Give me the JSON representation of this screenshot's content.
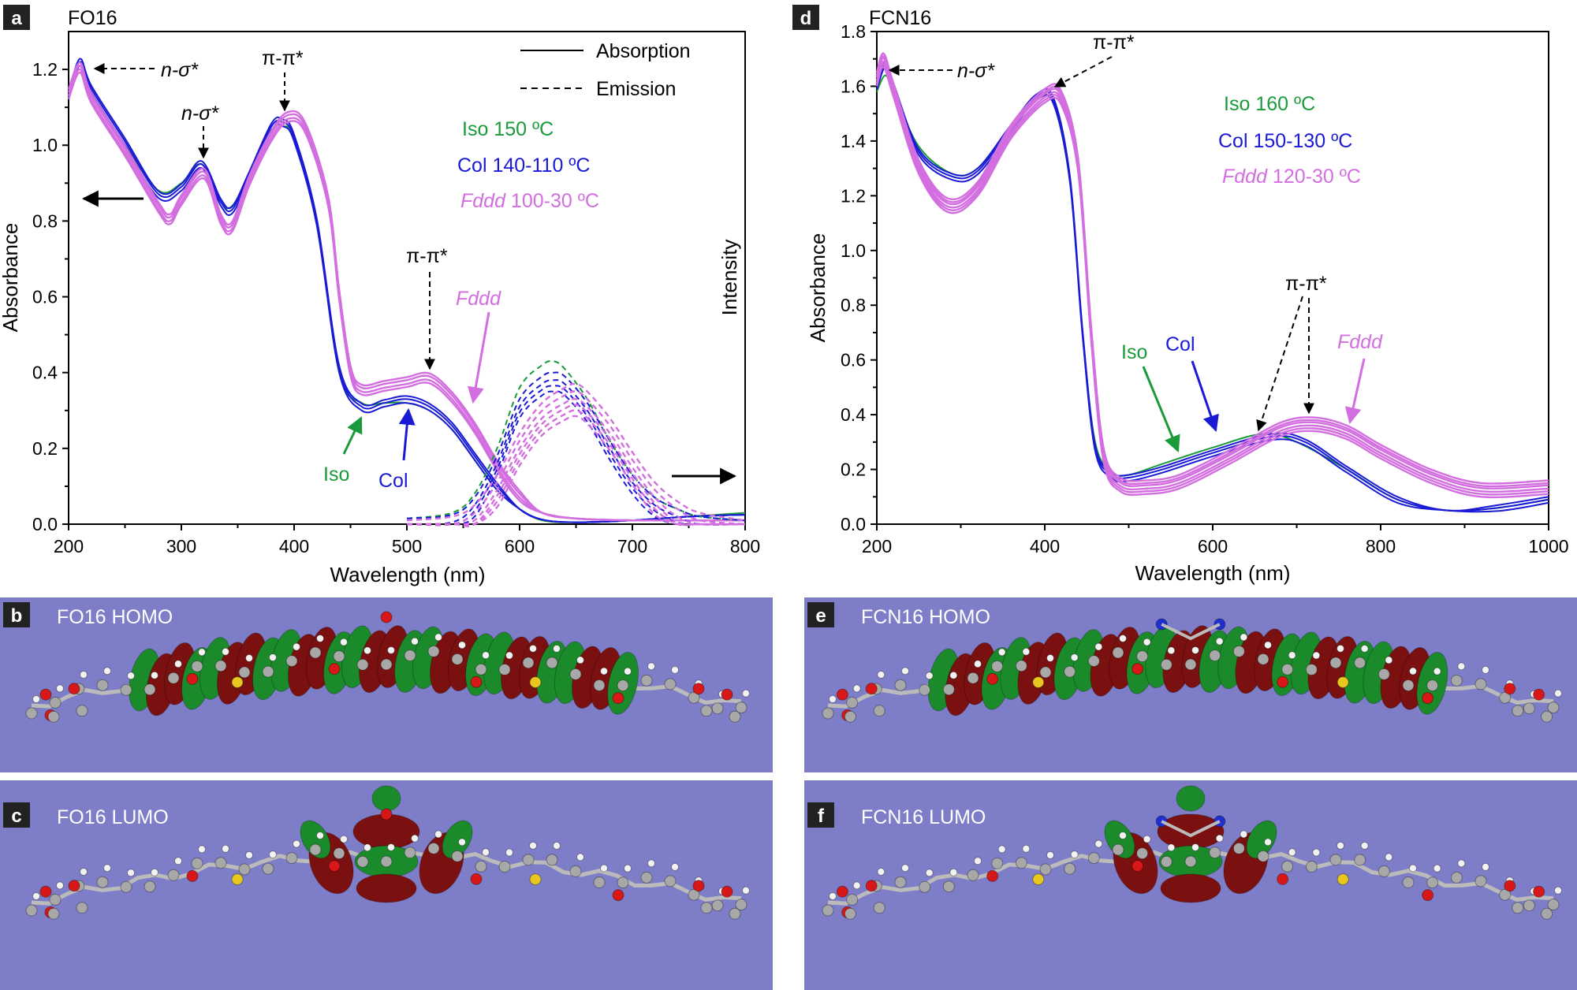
{
  "colors": {
    "iso": "#1a9a3a",
    "col": "#1a1ad6",
    "fddd": "#d36ee0",
    "panel_bg": "#7e7ec8",
    "lobe_green": "#1a8a2a",
    "lobe_red": "#7a1010",
    "atom_c": "#a8a8a8",
    "atom_h": "#f2f2f2",
    "atom_o": "#d81818",
    "atom_s": "#e8c820",
    "atom_n": "#2030d0"
  },
  "panels": {
    "a": {
      "letter": "a",
      "title": "FO16"
    },
    "d": {
      "letter": "d",
      "title": "FCN16"
    },
    "b": {
      "letter": "b",
      "title": "FO16 HOMO"
    },
    "c": {
      "letter": "c",
      "title": "FO16 LUMO"
    },
    "e": {
      "letter": "e",
      "title": "FCN16 HOMO"
    },
    "f": {
      "letter": "f",
      "title": "FCN16 LUMO"
    }
  },
  "annotations_a": {
    "n_sigma_1": "n-σ*",
    "n_sigma_2": "n-σ*",
    "pi_pi_1": "π-π*",
    "pi_pi_2": "π-π*",
    "fddd_label": "Fddd",
    "iso_label": "Iso",
    "col_label": "Col",
    "legend_abs": "Absorption",
    "legend_em": "Emission",
    "iso_temp": "Iso 150 ºC",
    "col_temp": "Col 140-110 ºC",
    "fddd_temp_italic": "Fddd",
    "fddd_temp_rest": " 100-30 ºC"
  },
  "annotations_d": {
    "n_sigma": "n-σ*",
    "pi_pi_1": "π-π*",
    "pi_pi_2": "π-π*",
    "iso_label": "Iso",
    "col_label": "Col",
    "fddd_label": "Fddd",
    "iso_temp": "Iso 160 ºC",
    "col_temp": "Col 150-130 ºC",
    "fddd_temp_italic": "Fddd",
    "fddd_temp_rest": " 120-30 ºC"
  },
  "chart_data": [
    {
      "type": "line",
      "title": "FO16",
      "xlabel": "Wavelength (nm)",
      "ylabel": "Absorbance",
      "y2label": "Intensity",
      "xlim": [
        200,
        800
      ],
      "ylim": [
        0,
        1.3
      ],
      "xticks": [
        200,
        300,
        400,
        500,
        600,
        700,
        800
      ],
      "xtick_labels": [
        "200",
        "300",
        "400",
        "500",
        "600",
        "700",
        "800"
      ],
      "yticks": [
        0,
        0.2,
        0.4,
        0.6,
        0.8,
        1.0,
        1.2
      ],
      "ytick_labels": [
        "0.0",
        "0.2",
        "0.4",
        "0.6",
        "0.8",
        "1.0",
        "1.2"
      ],
      "series": [
        {
          "name": "Iso 150 ºC absorption",
          "phase": "iso",
          "style": "solid",
          "x": [
            200,
            210,
            220,
            250,
            280,
            300,
            318,
            335,
            345,
            360,
            380,
            390,
            400,
            420,
            440,
            460,
            480,
            500,
            520,
            540,
            560,
            580,
            600,
            620,
            650,
            700,
            750,
            800
          ],
          "y": [
            1.13,
            1.21,
            1.14,
            1.0,
            0.88,
            0.9,
            0.95,
            0.85,
            0.84,
            0.92,
            1.04,
            1.05,
            1.02,
            0.8,
            0.4,
            0.32,
            0.32,
            0.32,
            0.3,
            0.25,
            0.17,
            0.09,
            0.04,
            0.01,
            0.005,
            0.01,
            0.02,
            0.03
          ]
        },
        {
          "name": "Col 140-110 ºC absorption",
          "phase": "col",
          "style": "solid",
          "x": [
            200,
            210,
            220,
            250,
            280,
            300,
            318,
            335,
            345,
            360,
            380,
            390,
            400,
            420,
            440,
            460,
            480,
            500,
            520,
            540,
            560,
            580,
            600,
            620,
            650,
            700,
            750,
            800
          ],
          "y": [
            1.13,
            1.22,
            1.15,
            1.01,
            0.87,
            0.89,
            0.95,
            0.85,
            0.83,
            0.92,
            1.05,
            1.06,
            1.02,
            0.8,
            0.41,
            0.31,
            0.32,
            0.33,
            0.31,
            0.26,
            0.18,
            0.1,
            0.04,
            0.012,
            0.005,
            0.01,
            0.02,
            0.025
          ]
        },
        {
          "name": "Fddd 100-30 ºC absorption",
          "phase": "fddd",
          "style": "solid",
          "x": [
            200,
            210,
            220,
            250,
            280,
            290,
            300,
            320,
            335,
            345,
            360,
            380,
            395,
            410,
            430,
            440,
            450,
            460,
            480,
            500,
            520,
            540,
            560,
            580,
            600,
            620,
            650,
            700,
            750,
            800
          ],
          "y": [
            1.13,
            1.2,
            1.12,
            0.98,
            0.83,
            0.8,
            0.85,
            0.92,
            0.8,
            0.78,
            0.9,
            1.02,
            1.07,
            1.04,
            0.85,
            0.6,
            0.4,
            0.35,
            0.36,
            0.37,
            0.38,
            0.33,
            0.25,
            0.15,
            0.07,
            0.03,
            0.015,
            0.01,
            0.01,
            0.01
          ]
        },
        {
          "name": "Iso emission",
          "phase": "iso",
          "style": "dashed",
          "x": [
            500,
            540,
            560,
            580,
            600,
            620,
            630,
            640,
            660,
            680,
            700,
            720,
            740,
            760,
            800
          ],
          "y": [
            0.015,
            0.03,
            0.08,
            0.2,
            0.36,
            0.42,
            0.43,
            0.41,
            0.33,
            0.22,
            0.13,
            0.07,
            0.04,
            0.02,
            0.01
          ]
        },
        {
          "name": "Col emission",
          "phase": "col",
          "style": "dashed",
          "x": [
            500,
            540,
            560,
            580,
            600,
            620,
            630,
            640,
            660,
            680,
            700,
            720,
            740,
            760,
            800
          ],
          "y": [
            0.015,
            0.025,
            0.07,
            0.18,
            0.33,
            0.39,
            0.4,
            0.39,
            0.32,
            0.22,
            0.13,
            0.07,
            0.04,
            0.02,
            0.01
          ]
        },
        {
          "name": "Fddd emission",
          "phase": "fddd",
          "style": "dashed",
          "x": [
            500,
            540,
            560,
            580,
            600,
            620,
            640,
            650,
            660,
            680,
            700,
            720,
            740,
            760,
            800
          ],
          "y": [
            0.01,
            0.02,
            0.05,
            0.13,
            0.24,
            0.32,
            0.36,
            0.37,
            0.35,
            0.28,
            0.19,
            0.11,
            0.06,
            0.03,
            0.01
          ]
        }
      ]
    },
    {
      "type": "line",
      "title": "FCN16",
      "xlabel": "Wavelength (nm)",
      "ylabel": "Absorbance",
      "xlim": [
        200,
        1000
      ],
      "ylim": [
        0,
        1.8
      ],
      "xticks": [
        200,
        400,
        600,
        800,
        1000
      ],
      "xtick_labels": [
        "200",
        "400",
        "600",
        "800",
        "1000"
      ],
      "yticks": [
        0,
        0.2,
        0.4,
        0.6,
        0.8,
        1.0,
        1.2,
        1.4,
        1.6,
        1.8
      ],
      "ytick_labels": [
        "0.0",
        "0.2",
        "0.4",
        "0.6",
        "0.8",
        "1.0",
        "1.2",
        "1.4",
        "1.6",
        "1.8"
      ],
      "series": [
        {
          "name": "Iso 160 ºC",
          "phase": "iso",
          "style": "solid",
          "x": [
            200,
            210,
            220,
            250,
            290,
            320,
            360,
            390,
            410,
            430,
            445,
            460,
            480,
            500,
            540,
            600,
            660,
            700,
            760,
            820,
            880,
            940,
            1000
          ],
          "y": [
            1.58,
            1.64,
            1.58,
            1.38,
            1.28,
            1.3,
            1.45,
            1.55,
            1.54,
            1.25,
            0.7,
            0.3,
            0.19,
            0.18,
            0.22,
            0.28,
            0.33,
            0.3,
            0.2,
            0.09,
            0.05,
            0.06,
            0.09
          ]
        },
        {
          "name": "Col 150-130 ºC",
          "phase": "col",
          "style": "solid",
          "x": [
            200,
            210,
            220,
            250,
            290,
            320,
            360,
            390,
            410,
            430,
            445,
            460,
            480,
            500,
            540,
            600,
            670,
            710,
            760,
            820,
            880,
            940,
            1000
          ],
          "y": [
            1.6,
            1.68,
            1.6,
            1.36,
            1.27,
            1.29,
            1.45,
            1.56,
            1.55,
            1.26,
            0.7,
            0.28,
            0.18,
            0.17,
            0.2,
            0.26,
            0.32,
            0.3,
            0.2,
            0.09,
            0.05,
            0.06,
            0.09
          ]
        },
        {
          "name": "Fddd 120-30 ºC",
          "phase": "fddd",
          "style": "solid",
          "x": [
            200,
            208,
            220,
            250,
            285,
            320,
            360,
            400,
            420,
            440,
            455,
            470,
            490,
            520,
            560,
            620,
            680,
            720,
            760,
            800,
            860,
            920,
            1000
          ],
          "y": [
            1.62,
            1.69,
            1.58,
            1.3,
            1.16,
            1.22,
            1.43,
            1.56,
            1.55,
            1.3,
            0.7,
            0.25,
            0.14,
            0.13,
            0.15,
            0.24,
            0.34,
            0.36,
            0.33,
            0.26,
            0.17,
            0.12,
            0.13
          ]
        }
      ]
    }
  ]
}
